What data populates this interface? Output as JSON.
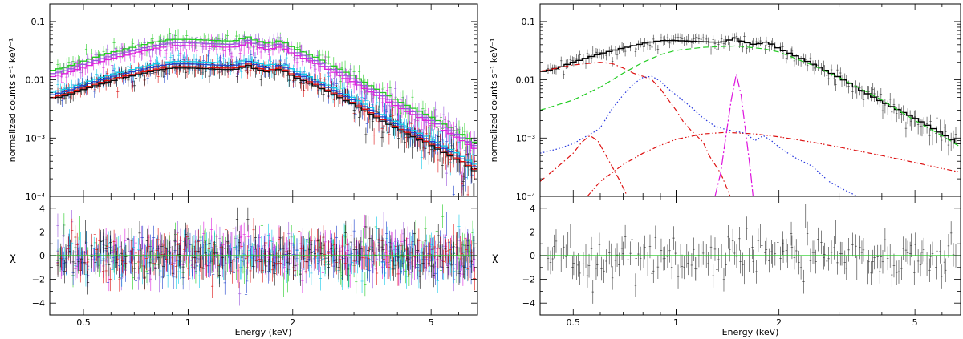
{
  "chart_data": [
    {
      "type": "line",
      "panel": "left",
      "title": "",
      "xlabel": "Energy (keV)",
      "ylabel_top": "normalized counts s⁻¹ keV⁻¹",
      "ylabel_bottom": "χ",
      "xscale": "log",
      "xlim": [
        0.4,
        6.8
      ],
      "ylim_top": [
        0.0001,
        0.2
      ],
      "ylim_bottom": [
        -5,
        5
      ],
      "x_ticks": [
        0.5,
        1,
        2,
        5
      ],
      "x_tick_labels": [
        "0.5",
        "1",
        "2",
        "5"
      ],
      "y_ticks_top": [
        0.0001,
        0.001,
        0.01,
        0.1
      ],
      "y_tick_labels_top": [
        "10⁻⁴",
        "10⁻³",
        "0.01",
        "0.1"
      ],
      "y_ticks_bottom": [
        -4,
        -2,
        0,
        2,
        4
      ],
      "y_tick_labels_bottom": [
        "−4",
        "−2",
        "0",
        "2",
        "4"
      ],
      "series": [
        {
          "name": "high group green",
          "color": "#22cc22",
          "scale": 1.05
        },
        {
          "name": "high group violet",
          "color": "#9955dd",
          "scale": 0.92
        },
        {
          "name": "high group magenta",
          "color": "#dd22dd",
          "scale": 0.82
        },
        {
          "name": "low group cyan",
          "color": "#11c8e8",
          "scale": 0.44
        },
        {
          "name": "low group blue",
          "color": "#2244cc",
          "scale": 0.4
        },
        {
          "name": "low group red",
          "color": "#dd1111",
          "scale": 0.36
        },
        {
          "name": "low group black",
          "color": "#111111",
          "scale": 0.34
        }
      ],
      "model_points": [
        [
          0.4,
          0.0135
        ],
        [
          0.45,
          0.016
        ],
        [
          0.5,
          0.02
        ],
        [
          0.55,
          0.024
        ],
        [
          0.6,
          0.028
        ],
        [
          0.7,
          0.035
        ],
        [
          0.8,
          0.042
        ],
        [
          0.9,
          0.047
        ],
        [
          1.0,
          0.047
        ],
        [
          1.1,
          0.046
        ],
        [
          1.2,
          0.045
        ],
        [
          1.3,
          0.044
        ],
        [
          1.4,
          0.045
        ],
        [
          1.48,
          0.053
        ],
        [
          1.55,
          0.046
        ],
        [
          1.7,
          0.04
        ],
        [
          1.85,
          0.045
        ],
        [
          2.0,
          0.034
        ],
        [
          2.3,
          0.024
        ],
        [
          2.6,
          0.017
        ],
        [
          3.0,
          0.011
        ],
        [
          3.5,
          0.0065
        ],
        [
          4.0,
          0.0042
        ],
        [
          5.0,
          0.0022
        ],
        [
          6.0,
          0.0012
        ],
        [
          6.8,
          0.00075
        ]
      ]
    },
    {
      "type": "line",
      "panel": "right",
      "title": "",
      "xlabel": "Energy (keV)",
      "ylabel_top": "normalized counts s⁻¹ keV⁻¹",
      "ylabel_bottom": "χ",
      "xscale": "log",
      "xlim": [
        0.4,
        6.8
      ],
      "ylim_top": [
        0.0001,
        0.2
      ],
      "ylim_bottom": [
        -5,
        5
      ],
      "x_ticks": [
        0.5,
        1,
        2,
        5
      ],
      "x_tick_labels": [
        "0.5",
        "1",
        "2",
        "5"
      ],
      "y_ticks_top": [
        0.0001,
        0.001,
        0.01,
        0.1
      ],
      "y_tick_labels_top": [
        "10⁻⁴",
        "10⁻³",
        "0.01",
        "0.1"
      ],
      "y_ticks_bottom": [
        -4,
        -2,
        0,
        2,
        4
      ],
      "y_tick_labels_bottom": [
        "−4",
        "−2",
        "0",
        "2",
        "4"
      ],
      "series": [
        {
          "name": "total model",
          "color": "#000000",
          "style": "solid",
          "points": [
            [
              0.4,
              0.0135
            ],
            [
              0.45,
              0.016
            ],
            [
              0.5,
              0.02
            ],
            [
              0.55,
              0.024
            ],
            [
              0.6,
              0.028
            ],
            [
              0.7,
              0.035
            ],
            [
              0.8,
              0.042
            ],
            [
              0.9,
              0.047
            ],
            [
              1.0,
              0.047
            ],
            [
              1.1,
              0.046
            ],
            [
              1.2,
              0.045
            ],
            [
              1.3,
              0.044
            ],
            [
              1.4,
              0.045
            ],
            [
              1.48,
              0.053
            ],
            [
              1.55,
              0.046
            ],
            [
              1.7,
              0.04
            ],
            [
              1.85,
              0.045
            ],
            [
              2.0,
              0.034
            ],
            [
              2.3,
              0.024
            ],
            [
              2.6,
              0.017
            ],
            [
              3.0,
              0.011
            ],
            [
              3.5,
              0.0065
            ],
            [
              4.0,
              0.0042
            ],
            [
              5.0,
              0.0022
            ],
            [
              6.0,
              0.0012
            ],
            [
              6.8,
              0.00075
            ]
          ]
        },
        {
          "name": "green dashed component",
          "color": "#22cc22",
          "style": "dashed",
          "points": [
            [
              0.4,
              0.003
            ],
            [
              0.5,
              0.0045
            ],
            [
              0.6,
              0.0075
            ],
            [
              0.7,
              0.013
            ],
            [
              0.8,
              0.02
            ],
            [
              0.9,
              0.027
            ],
            [
              1.0,
              0.032
            ],
            [
              1.2,
              0.036
            ],
            [
              1.5,
              0.038
            ],
            [
              1.8,
              0.034
            ],
            [
              2.0,
              0.03
            ],
            [
              2.5,
              0.018
            ],
            [
              3.0,
              0.011
            ],
            [
              4.0,
              0.0045
            ],
            [
              5.0,
              0.002
            ],
            [
              6.0,
              0.0011
            ],
            [
              6.8,
              0.0007
            ]
          ]
        },
        {
          "name": "red dash-dot component (soft)",
          "color": "#dd1111",
          "style": "dashdot",
          "points": [
            [
              0.4,
              0.014
            ],
            [
              0.45,
              0.016
            ],
            [
              0.5,
              0.018
            ],
            [
              0.55,
              0.019
            ],
            [
              0.6,
              0.02
            ],
            [
              0.65,
              0.019
            ],
            [
              0.7,
              0.016
            ],
            [
              0.75,
              0.013
            ],
            [
              0.8,
              0.0115
            ],
            [
              0.85,
              0.01
            ],
            [
              0.9,
              0.007
            ],
            [
              0.95,
              0.0045
            ],
            [
              1.0,
              0.003
            ],
            [
              1.05,
              0.0019
            ],
            [
              1.1,
              0.0014
            ],
            [
              1.2,
              0.00085
            ],
            [
              1.25,
              0.0005
            ],
            [
              1.3,
              0.00035
            ],
            [
              1.35,
              0.00025
            ],
            [
              1.4,
              0.00015
            ],
            [
              1.44,
              0.0001
            ]
          ]
        },
        {
          "name": "red dash-dot component (low-T)",
          "color": "#dd1111",
          "style": "dashdot",
          "points": [
            [
              0.4,
              0.00018
            ],
            [
              0.45,
              0.00032
            ],
            [
              0.5,
              0.00055
            ],
            [
              0.53,
              0.00085
            ],
            [
              0.56,
              0.0011
            ],
            [
              0.59,
              0.0009
            ],
            [
              0.63,
              0.00045
            ],
            [
              0.68,
              0.0002
            ],
            [
              0.72,
              0.0001
            ]
          ]
        },
        {
          "name": "red dash-dot component (broad)",
          "color": "#dd1111",
          "style": "dashdotdot",
          "points": [
            [
              0.55,
              0.0001
            ],
            [
              0.6,
              0.00018
            ],
            [
              0.7,
              0.00035
            ],
            [
              0.8,
              0.00055
            ],
            [
              0.9,
              0.00075
            ],
            [
              1.0,
              0.00095
            ],
            [
              1.2,
              0.00118
            ],
            [
              1.4,
              0.00125
            ],
            [
              1.7,
              0.00118
            ],
            [
              2.0,
              0.00105
            ],
            [
              2.5,
              0.00085
            ],
            [
              3.0,
              0.0007
            ],
            [
              4.0,
              0.0005
            ],
            [
              5.0,
              0.00038
            ],
            [
              6.0,
              0.0003
            ],
            [
              6.8,
              0.00026
            ]
          ]
        },
        {
          "name": "blue dotted component",
          "color": "#2233dd",
          "style": "dotted",
          "points": [
            [
              0.4,
              0.00055
            ],
            [
              0.45,
              0.00065
            ],
            [
              0.5,
              0.0008
            ],
            [
              0.55,
              0.0011
            ],
            [
              0.58,
              0.0013
            ],
            [
              0.6,
              0.0015
            ],
            [
              0.65,
              0.0032
            ],
            [
              0.7,
              0.0055
            ],
            [
              0.75,
              0.0085
            ],
            [
              0.8,
              0.011
            ],
            [
              0.85,
              0.0115
            ],
            [
              0.9,
              0.0095
            ],
            [
              0.95,
              0.007
            ],
            [
              1.0,
              0.0055
            ],
            [
              1.1,
              0.0035
            ],
            [
              1.2,
              0.0022
            ],
            [
              1.3,
              0.0016
            ],
            [
              1.4,
              0.0014
            ],
            [
              1.5,
              0.0013
            ],
            [
              1.6,
              0.0012
            ],
            [
              1.7,
              0.0009
            ],
            [
              1.8,
              0.0011
            ],
            [
              1.9,
              0.0009
            ],
            [
              2.0,
              0.0007
            ],
            [
              2.2,
              0.00048
            ],
            [
              2.5,
              0.00033
            ],
            [
              2.8,
              0.00018
            ],
            [
              3.1,
              0.00013
            ],
            [
              3.4,
              0.0001
            ]
          ]
        },
        {
          "name": "magenta line component",
          "color": "#dd11dd",
          "style": "longdashdot",
          "points": [
            [
              1.3,
              0.0001
            ],
            [
              1.35,
              0.00025
            ],
            [
              1.4,
              0.0011
            ],
            [
              1.45,
              0.0045
            ],
            [
              1.5,
              0.0125
            ],
            [
              1.55,
              0.0055
            ],
            [
              1.6,
              0.0012
            ],
            [
              1.65,
              0.00028
            ],
            [
              1.68,
              0.0001
            ]
          ]
        }
      ]
    }
  ]
}
